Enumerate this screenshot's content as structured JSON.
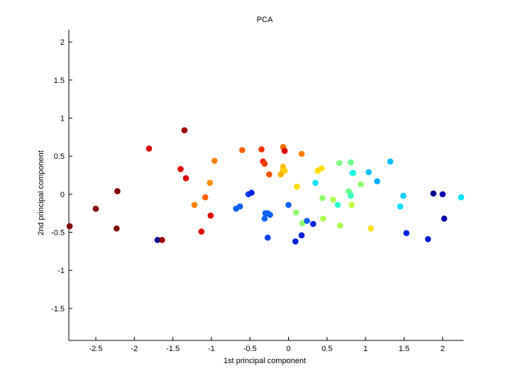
{
  "chart_data": {
    "type": "scatter",
    "title": "PCA",
    "xlabel": "1st principal component",
    "ylabel": "2nd principal component",
    "xlim": [
      -2.85,
      2.27
    ],
    "ylim": [
      -1.92,
      2.16
    ],
    "xticks": [
      -2.5,
      -2,
      -1.5,
      -1,
      -0.5,
      0,
      0.5,
      1,
      1.5,
      2
    ],
    "xtick_labels": [
      "-2.5",
      "-2",
      "-1.5",
      "-1",
      "-0.5",
      "0",
      "0.5",
      "1",
      "1.5",
      "2"
    ],
    "yticks": [
      -1.5,
      -1,
      -0.5,
      0,
      0.5,
      1,
      1.5,
      2
    ],
    "ytick_labels": [
      "-1.5",
      "-1",
      "-0.5",
      "0",
      "0.5",
      "1",
      "1.5",
      "2"
    ],
    "grid": false,
    "colormap": "jet",
    "points": [
      {
        "x": -2.84,
        "y": -0.42,
        "color": "#800000"
      },
      {
        "x": -2.5,
        "y": -0.19,
        "color": "#800000"
      },
      {
        "x": -2.22,
        "y": 0.04,
        "color": "#800000"
      },
      {
        "x": -2.23,
        "y": -0.45,
        "color": "#800000"
      },
      {
        "x": -1.81,
        "y": 0.6,
        "color": "#e00000"
      },
      {
        "x": -1.7,
        "y": -0.6,
        "color": "#00008f"
      },
      {
        "x": -1.64,
        "y": -0.6,
        "color": "#990000"
      },
      {
        "x": -1.35,
        "y": 0.84,
        "color": "#9a0000"
      },
      {
        "x": -1.4,
        "y": 0.33,
        "color": "#e00000"
      },
      {
        "x": -1.33,
        "y": 0.21,
        "color": "#e00000"
      },
      {
        "x": -1.22,
        "y": -0.14,
        "color": "#ff8000"
      },
      {
        "x": -1.13,
        "y": -0.49,
        "color": "#e00000"
      },
      {
        "x": -1.08,
        "y": -0.04,
        "color": "#ff6000"
      },
      {
        "x": -1.01,
        "y": -0.28,
        "color": "#e00000"
      },
      {
        "x": -1.02,
        "y": 0.15,
        "color": "#ff9000"
      },
      {
        "x": -0.96,
        "y": 0.44,
        "color": "#ff8000"
      },
      {
        "x": -0.68,
        "y": -0.19,
        "color": "#1060ff"
      },
      {
        "x": -0.63,
        "y": -0.16,
        "color": "#1060ff"
      },
      {
        "x": -0.6,
        "y": 0.58,
        "color": "#ff6000"
      },
      {
        "x": -0.52,
        "y": 0.0,
        "color": "#0040ff"
      },
      {
        "x": -0.48,
        "y": 0.02,
        "color": "#0020e0"
      },
      {
        "x": -0.35,
        "y": 0.59,
        "color": "#ff3000"
      },
      {
        "x": -0.33,
        "y": 0.43,
        "color": "#ff2000"
      },
      {
        "x": -0.31,
        "y": 0.4,
        "color": "#ff4000"
      },
      {
        "x": -0.3,
        "y": -0.25,
        "color": "#1060ff"
      },
      {
        "x": -0.27,
        "y": -0.25,
        "color": "#1060ff"
      },
      {
        "x": -0.31,
        "y": -0.32,
        "color": "#1060ff"
      },
      {
        "x": -0.24,
        "y": -0.27,
        "color": "#1060ff"
      },
      {
        "x": -0.27,
        "y": -0.57,
        "color": "#0040ff"
      },
      {
        "x": -0.25,
        "y": 0.26,
        "color": "#ff5000"
      },
      {
        "x": -0.07,
        "y": 0.62,
        "color": "#ff7000"
      },
      {
        "x": -0.05,
        "y": 0.57,
        "color": "#e00000"
      },
      {
        "x": -0.07,
        "y": 0.36,
        "color": "#ffc000"
      },
      {
        "x": -0.07,
        "y": 0.31,
        "color": "#ffc000"
      },
      {
        "x": -0.1,
        "y": 0.26,
        "color": "#ffb000"
      },
      {
        "x": -0.05,
        "y": 0.31,
        "color": "#ffd000"
      },
      {
        "x": 0.0,
        "y": -0.14,
        "color": "#1060ff"
      },
      {
        "x": 0.09,
        "y": -0.62,
        "color": "#0020e0"
      },
      {
        "x": 0.11,
        "y": 0.1,
        "color": "#ffe000"
      },
      {
        "x": 0.1,
        "y": -0.24,
        "color": "#90ff70"
      },
      {
        "x": 0.17,
        "y": 0.53,
        "color": "#ff8000"
      },
      {
        "x": 0.17,
        "y": -0.54,
        "color": "#0020e0"
      },
      {
        "x": 0.18,
        "y": -0.38,
        "color": "#90ff70"
      },
      {
        "x": 0.24,
        "y": -0.35,
        "color": "#1060ff"
      },
      {
        "x": 0.32,
        "y": -0.39,
        "color": "#0020e0"
      },
      {
        "x": 0.35,
        "y": 0.15,
        "color": "#00e0ff"
      },
      {
        "x": 0.38,
        "y": 0.31,
        "color": "#ffe000"
      },
      {
        "x": 0.43,
        "y": 0.34,
        "color": "#ffe000"
      },
      {
        "x": 0.44,
        "y": -0.05,
        "color": "#90ff70"
      },
      {
        "x": 0.45,
        "y": -0.32,
        "color": "#b0ff50"
      },
      {
        "x": 0.58,
        "y": -0.07,
        "color": "#b0ff50"
      },
      {
        "x": 0.64,
        "y": -0.14,
        "color": "#30ffd0"
      },
      {
        "x": 0.66,
        "y": 0.41,
        "color": "#80ff80"
      },
      {
        "x": 0.67,
        "y": -0.41,
        "color": "#b0ff50"
      },
      {
        "x": 0.78,
        "y": 0.04,
        "color": "#70ff90"
      },
      {
        "x": 0.8,
        "y": 0.01,
        "color": "#70ff90"
      },
      {
        "x": 0.81,
        "y": -0.02,
        "color": "#40ffc0"
      },
      {
        "x": 0.81,
        "y": 0.42,
        "color": "#70ff90"
      },
      {
        "x": 0.82,
        "y": -0.14,
        "color": "#c0ff40"
      },
      {
        "x": 0.83,
        "y": 0.28,
        "color": "#00e0ff"
      },
      {
        "x": 0.84,
        "y": 0.28,
        "color": "#20ffe0"
      },
      {
        "x": 0.94,
        "y": 0.13,
        "color": "#90ff70"
      },
      {
        "x": 1.04,
        "y": 0.29,
        "color": "#00c0ff"
      },
      {
        "x": 1.07,
        "y": -0.45,
        "color": "#ffe000"
      },
      {
        "x": 1.15,
        "y": 0.17,
        "color": "#00b0ff"
      },
      {
        "x": 1.32,
        "y": 0.43,
        "color": "#00c0ff"
      },
      {
        "x": 1.45,
        "y": -0.16,
        "color": "#00e0ff"
      },
      {
        "x": 1.49,
        "y": -0.02,
        "color": "#00d0ff"
      },
      {
        "x": 1.53,
        "y": -0.51,
        "color": "#0020e0"
      },
      {
        "x": 1.81,
        "y": -0.59,
        "color": "#0020d0"
      },
      {
        "x": 1.88,
        "y": 0.01,
        "color": "#00008f"
      },
      {
        "x": 2.0,
        "y": 0.0,
        "color": "#0000b0"
      },
      {
        "x": 2.02,
        "y": -0.32,
        "color": "#0000b0"
      },
      {
        "x": 2.24,
        "y": -0.04,
        "color": "#00e0ff"
      }
    ]
  }
}
